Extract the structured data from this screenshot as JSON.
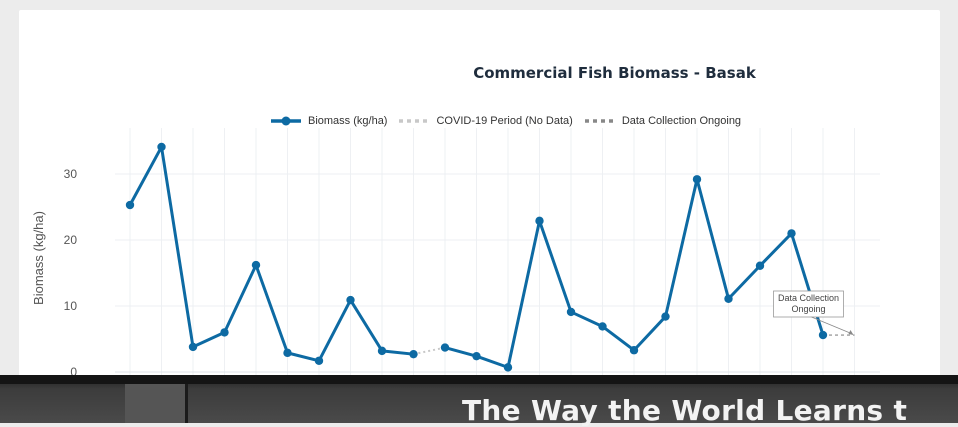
{
  "chart_data": {
    "type": "line",
    "title": "Commercial Fish Biomass - Basak",
    "ylabel": "Biomass (kg/ha)",
    "xlabel": "",
    "ylim": [
      0,
      36
    ],
    "yticks": [
      0,
      10,
      20,
      30
    ],
    "grid": true,
    "legend_placement": "top-center",
    "series": [
      {
        "name": "Biomass (kg/ha)",
        "color": "#0d6aa3",
        "style": "solid-markers",
        "segments": [
          [
            [
              0,
              25.3
            ],
            [
              1,
              34.1
            ],
            [
              2,
              3.8
            ],
            [
              3,
              6.0
            ],
            [
              4,
              16.2
            ],
            [
              5,
              2.9
            ],
            [
              6,
              1.7
            ],
            [
              7,
              10.9
            ],
            [
              8,
              3.2
            ],
            [
              9,
              2.7
            ]
          ],
          [
            [
              10,
              3.7
            ],
            [
              11,
              2.4
            ],
            [
              12,
              0.7
            ],
            [
              13,
              22.9
            ],
            [
              14,
              9.1
            ],
            [
              15,
              6.9
            ],
            [
              16,
              3.3
            ],
            [
              17,
              8.4
            ],
            [
              18,
              29.2
            ],
            [
              19,
              11.1
            ],
            [
              20,
              16.1
            ],
            [
              21,
              21.0
            ],
            [
              22,
              5.6
            ]
          ]
        ]
      },
      {
        "name": "COVID-19 Period (No Data)",
        "color": "#c8c8c8",
        "style": "dotted",
        "points": [
          [
            9,
            2.7
          ],
          [
            10,
            3.7
          ]
        ]
      },
      {
        "name": "Data Collection Ongoing",
        "color": "#888888",
        "style": "dashed",
        "points": [
          [
            22,
            5.6
          ],
          [
            23,
            5.6
          ]
        ]
      }
    ],
    "annotations": [
      {
        "text": "Data Collection\nOngoing",
        "x": 23,
        "y": 5.6
      }
    ]
  },
  "banner": {
    "title": "The Way the World Learns t"
  }
}
